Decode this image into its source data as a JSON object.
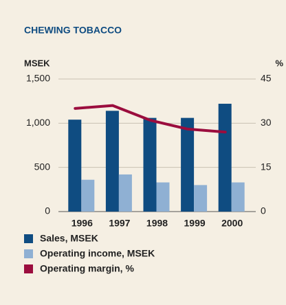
{
  "chart_data": {
    "type": "bar_line",
    "title": "CHEWING TOBACCO",
    "y_label": "MSEK",
    "y2_label": "%",
    "categories": [
      "1996",
      "1997",
      "1998",
      "1999",
      "2000"
    ],
    "series": [
      {
        "name": "Sales, MSEK",
        "color": "#0f4c81",
        "type": "bar",
        "values": [
          1040,
          1140,
          1060,
          1060,
          1220
        ]
      },
      {
        "name": "Operating income, MSEK",
        "color": "#8fb0d3",
        "type": "bar",
        "values": [
          360,
          420,
          330,
          300,
          330
        ]
      },
      {
        "name": "Operating margin, %",
        "color": "#9b0d3e",
        "type": "line",
        "axis": "y2",
        "values": [
          35,
          36,
          31,
          28,
          27
        ]
      }
    ],
    "ylim": [
      0,
      1500
    ],
    "yticks": [
      0,
      500,
      {
        "value": 1000,
        "label": "1,000"
      },
      {
        "value": 1500,
        "label": "1,500"
      }
    ],
    "y2lim": [
      0,
      45
    ],
    "y2ticks": [
      0,
      15,
      30,
      45
    ],
    "grid": true
  }
}
